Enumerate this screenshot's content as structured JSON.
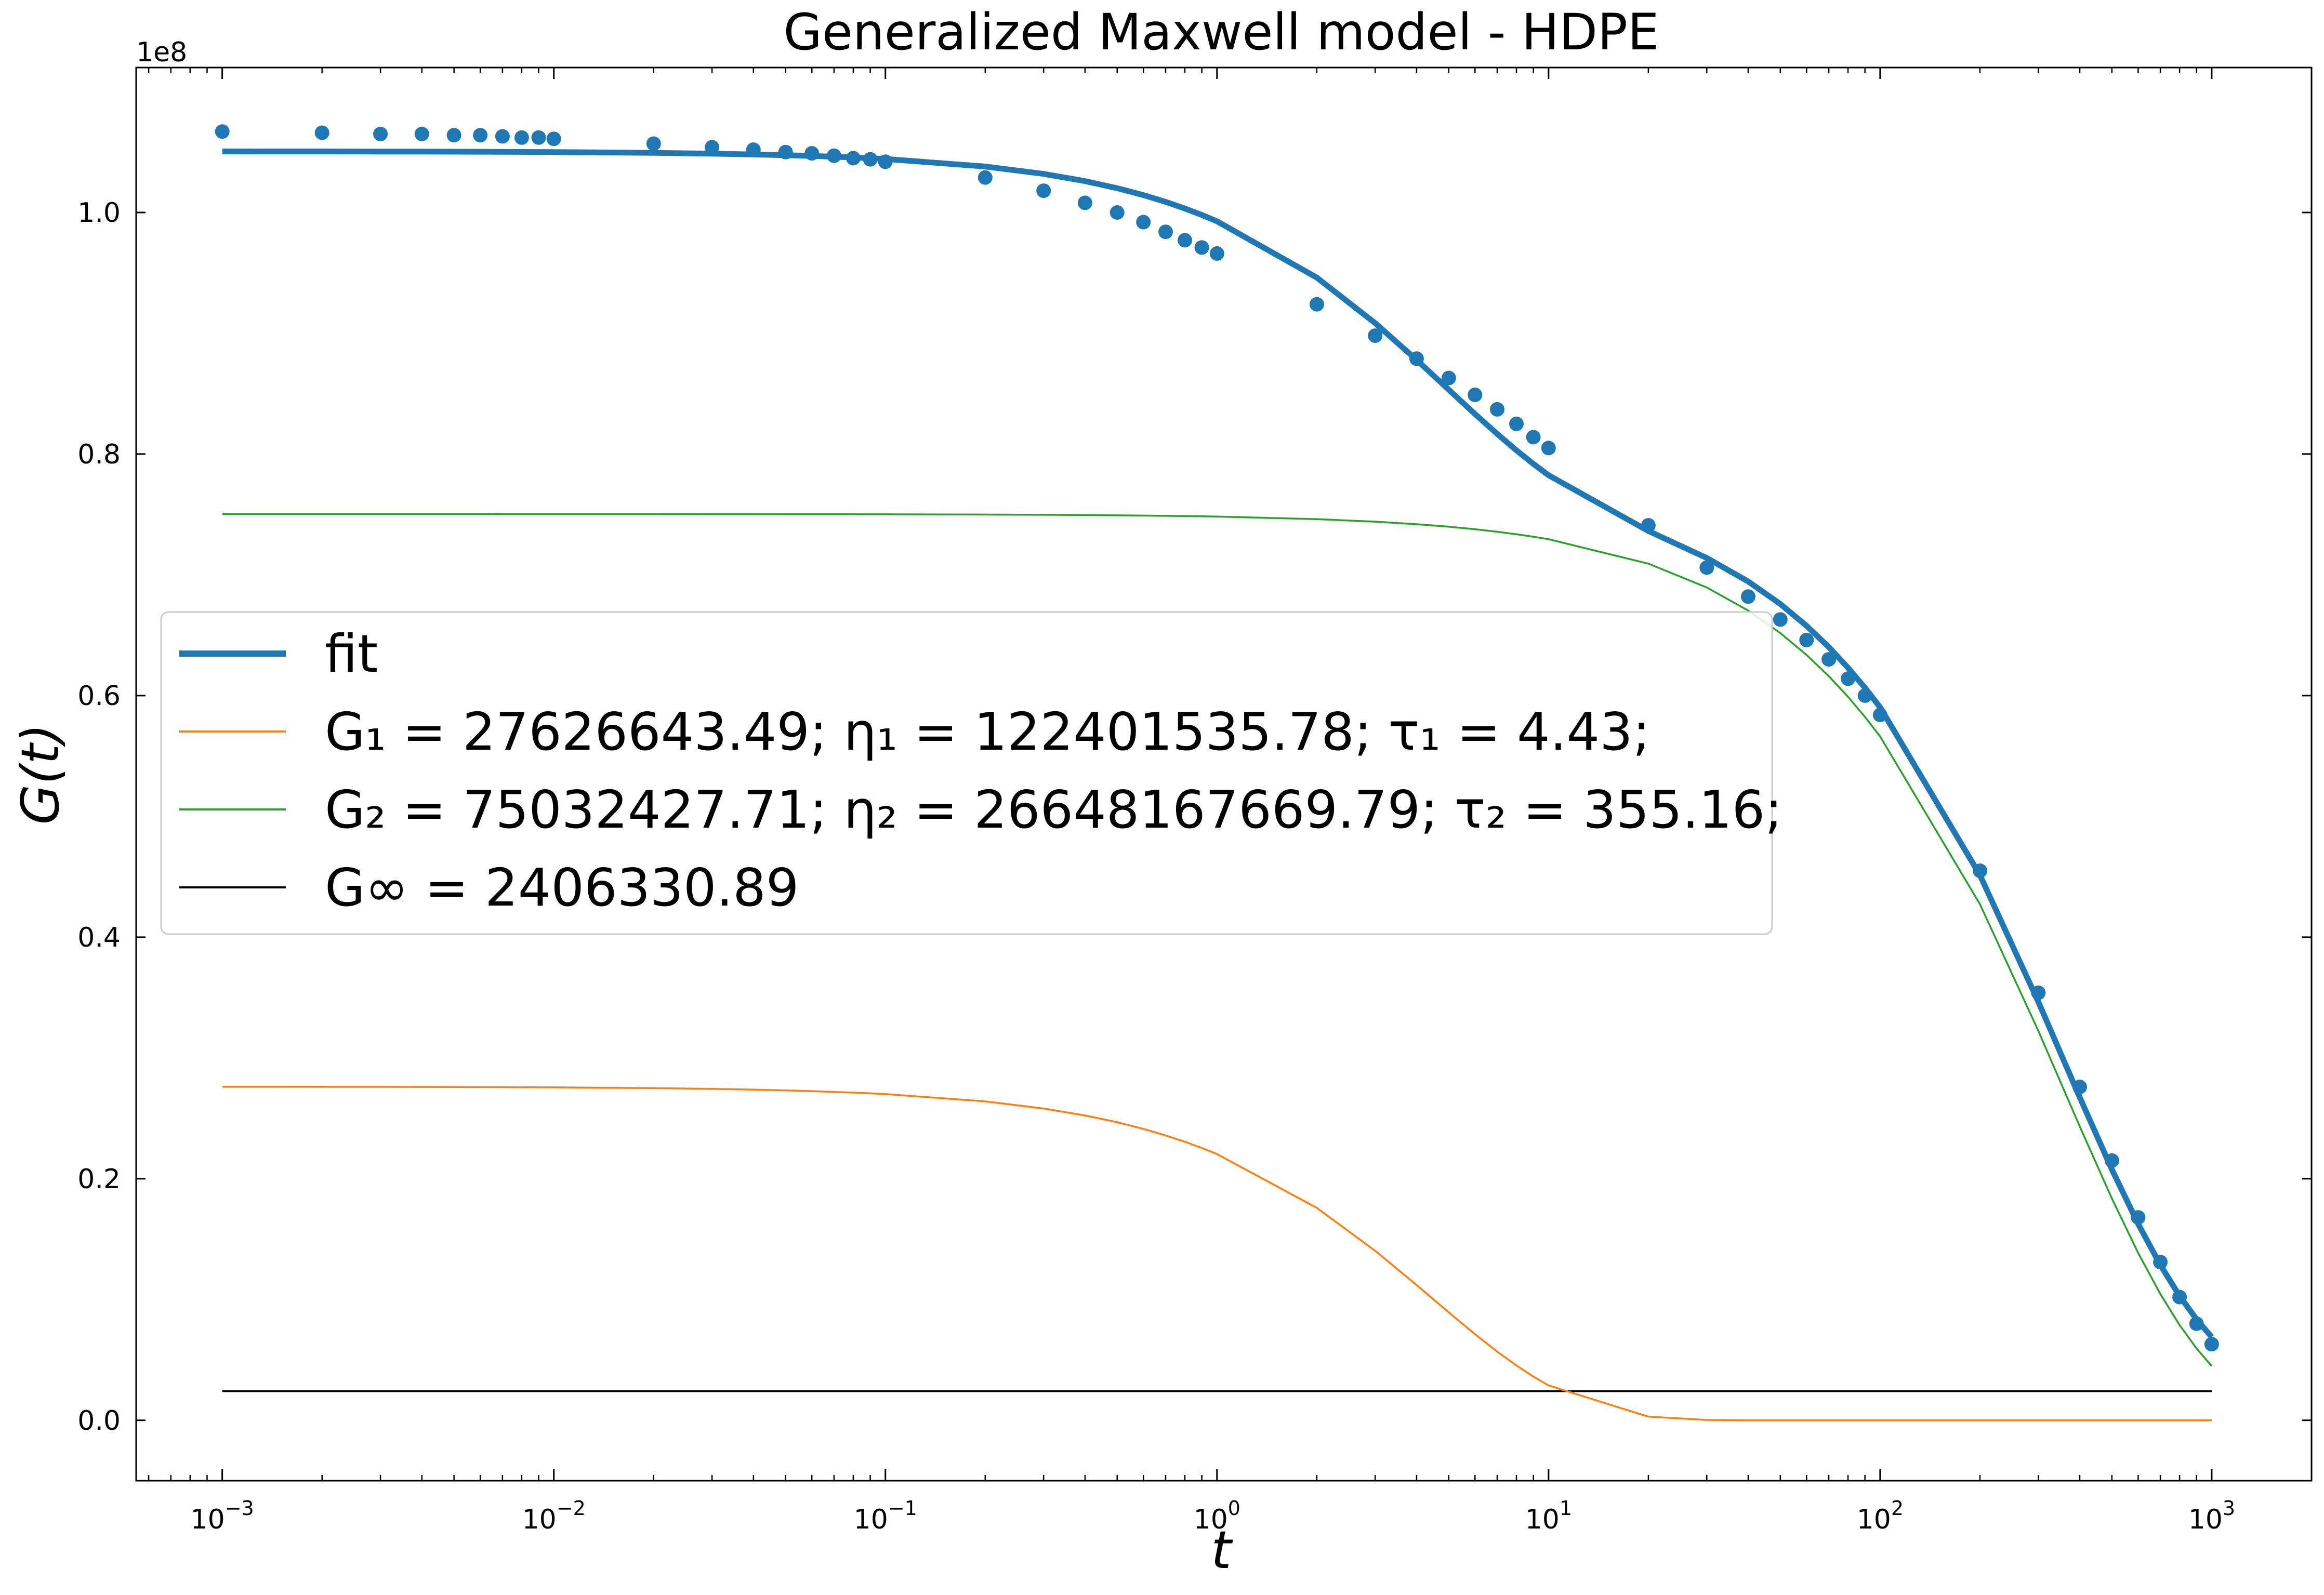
{
  "chart_data": {
    "type": "line",
    "title": "Generalized Maxwell model - HDPE",
    "xlabel": "t",
    "ylabel": "G(t)",
    "xscale": "log",
    "xlim": [
      0.00055,
      2000
    ],
    "ylim": [
      -5000000,
      112000000
    ],
    "y_offset_label": "1e8",
    "y_ticks": [
      0,
      20000000,
      40000000,
      60000000,
      80000000,
      100000000
    ],
    "y_tick_labels": [
      "0.0",
      "0.2",
      "0.4",
      "0.6",
      "0.8",
      "1.0"
    ],
    "x_ticks": [
      0.001,
      0.01,
      0.1,
      1,
      10,
      100,
      1000
    ],
    "x_tick_base": "10",
    "x_tick_exponents": [
      "−3",
      "−2",
      "−1",
      "0",
      "1",
      "2",
      "3"
    ],
    "legend": {
      "placement": "center-left",
      "entries": [
        {
          "id": "fit",
          "text": "fit"
        },
        {
          "id": "g1",
          "text": "G₁ = 27626643.49; η₁ = 122401535.78; τ₁ = 4.43;"
        },
        {
          "id": "g2",
          "text": "G₂ = 75032427.71; η₂ = 26648167669.79; τ₂ = 355.16;"
        },
        {
          "id": "ginf",
          "text": "G∞ = 2406330.89"
        }
      ]
    },
    "params": {
      "G1": 27626643.49,
      "tau1": 4.43,
      "G2": 75032427.71,
      "tau2": 355.16,
      "Ginf": 2406330.89
    },
    "t_curve": [
      0.001,
      0.002,
      0.003,
      0.004,
      0.005,
      0.006,
      0.007,
      0.008,
      0.009,
      0.01,
      0.02,
      0.03,
      0.04,
      0.05,
      0.06,
      0.07,
      0.08,
      0.09,
      0.1,
      0.2,
      0.3,
      0.4,
      0.5,
      0.6,
      0.7,
      0.8,
      0.9,
      1,
      2,
      3,
      4,
      5,
      6,
      7,
      8,
      9,
      10,
      20,
      30,
      40,
      50,
      60,
      70,
      80,
      90,
      100,
      200,
      300,
      400,
      500,
      600,
      700,
      800,
      900,
      1000
    ],
    "measured": {
      "t": [
        0.001,
        0.002,
        0.003,
        0.004,
        0.005,
        0.006,
        0.007,
        0.008,
        0.009,
        0.01,
        0.02,
        0.03,
        0.04,
        0.05,
        0.06,
        0.07,
        0.08,
        0.09,
        0.1,
        0.2,
        0.3,
        0.4,
        0.5,
        0.6,
        0.7,
        0.8,
        0.9,
        1,
        2,
        3,
        4,
        5,
        6,
        7,
        8,
        9,
        10,
        20,
        30,
        40,
        50,
        60,
        70,
        80,
        90,
        100,
        200,
        300,
        400,
        500,
        600,
        700,
        800,
        900,
        1000
      ],
      "G": [
        106700000,
        106600000,
        106500000,
        106500000,
        106400000,
        106400000,
        106300000,
        106200000,
        106200000,
        106100000,
        105700000,
        105400000,
        105200000,
        105000000,
        104900000,
        104700000,
        104500000,
        104400000,
        104200000,
        102900000,
        101800000,
        100800000,
        100000000,
        99200000,
        98400000,
        97700000,
        97100000,
        96600000,
        92400000,
        89800000,
        87900000,
        86300000,
        84900000,
        83700000,
        82500000,
        81400000,
        80500000,
        74100000,
        70600000,
        68200000,
        66300000,
        64600000,
        63000000,
        61400000,
        60000000,
        58400000,
        45500000,
        35400000,
        27600000,
        21500000,
        16800000,
        13100000,
        10200000,
        8000000,
        6300000
      ]
    },
    "series": [
      {
        "id": "fit",
        "color": "#1f77b4"
      },
      {
        "id": "g1",
        "color": "#ff7f0e"
      },
      {
        "id": "g2",
        "color": "#2ca02c"
      },
      {
        "id": "ginf",
        "color": "#000000"
      }
    ],
    "grid": false
  }
}
